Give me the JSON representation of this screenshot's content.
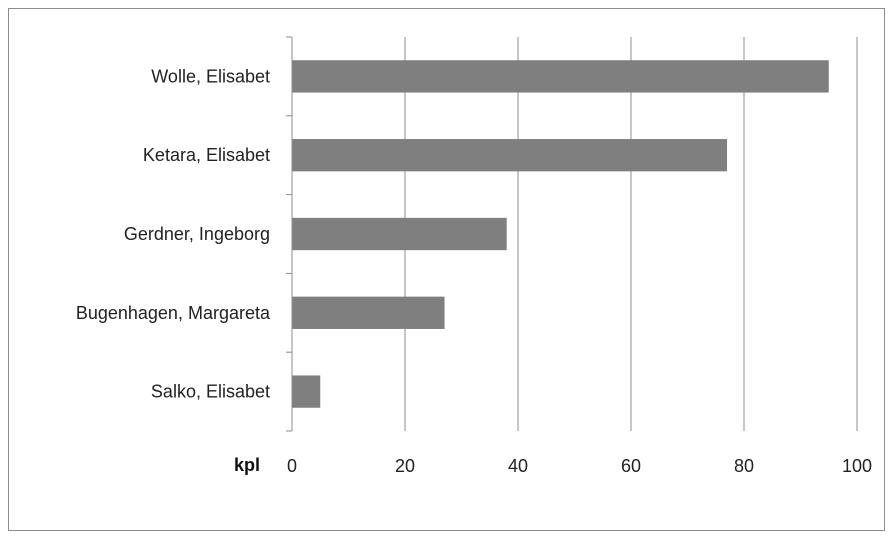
{
  "chart_data": {
    "type": "bar",
    "orientation": "horizontal",
    "categories": [
      "Wolle, Elisabet",
      "Ketara, Elisabet",
      "Gerdner, Ingeborg",
      "Bugenhagen, Margareta",
      "Salko, Elisabet"
    ],
    "values": [
      95,
      77,
      38,
      27,
      5
    ],
    "xlabel": "kpl",
    "ylabel": "",
    "xlim": [
      0,
      100
    ],
    "xticks": [
      "0",
      "20",
      "40",
      "60",
      "80",
      "100"
    ],
    "grid": "vertical",
    "legend": "none",
    "colors": {
      "bar": "#7f7f7f",
      "grid": "#8c8c8c",
      "axis": "#8c8c8c"
    }
  }
}
